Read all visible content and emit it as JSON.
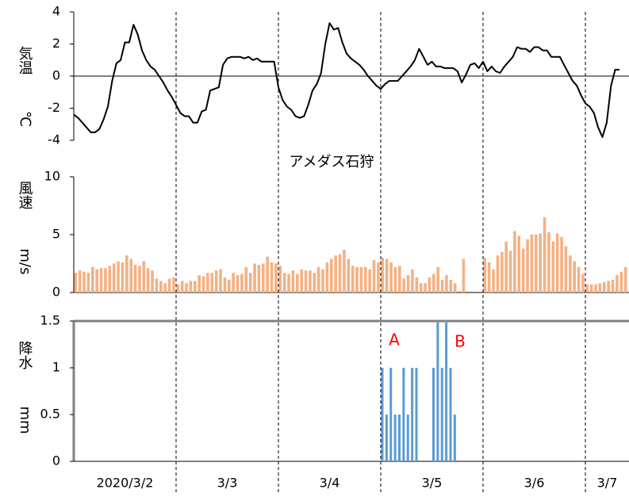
{
  "chart_data": [
    {
      "type": "line",
      "ylabel": "気温",
      "yunit": "℃",
      "color": "#000000",
      "ylim": [
        -4,
        4
      ],
      "yticks": [
        -4,
        -2,
        0,
        2,
        4
      ],
      "values": [
        [
          -2.4,
          -2.6,
          -2.9,
          -3.2,
          -3.5,
          -3.5,
          -3.3,
          -2.7,
          -1.9,
          -0.3,
          0.8,
          1.0,
          2.1,
          2.1,
          3.2,
          2.6,
          1.6,
          1.0,
          0.6,
          0.4,
          0.0,
          -0.4,
          -0.9,
          -1.3
        ],
        [
          -1.8,
          -2.3,
          -2.5,
          -2.5,
          -2.9,
          -2.9,
          -2.2,
          -2.1,
          -0.9,
          -0.8,
          -0.7,
          0.7,
          1.1,
          1.2,
          1.2,
          1.2,
          1.1,
          1.2,
          1.0,
          1.1,
          0.9,
          0.9,
          0.9,
          0.9
        ],
        [
          -0.7,
          -1.5,
          -1.9,
          -2.1,
          -2.5,
          -2.6,
          -2.5,
          -1.8,
          -0.9,
          -0.5,
          0.2,
          2.0,
          3.3,
          2.9,
          3.0,
          2.1,
          1.4,
          1.1,
          0.9,
          0.7,
          0.4,
          0.0,
          -0.3,
          -0.6
        ],
        [
          -0.8,
          -0.5,
          -0.3,
          -0.3,
          -0.3,
          0.0,
          0.3,
          0.6,
          1.0,
          1.7,
          1.2,
          0.7,
          0.9,
          0.6,
          0.6,
          0.5,
          0.5,
          0.5,
          0.3,
          -0.4,
          0.1,
          0.7,
          0.8,
          0.5
        ],
        [
          0.9,
          0.3,
          0.6,
          0.3,
          0.2,
          0.6,
          0.9,
          1.2,
          1.8,
          1.7,
          1.7,
          1.5,
          1.8,
          1.8,
          1.6,
          1.6,
          1.2,
          1.2,
          1.2,
          0.7,
          0.2,
          -0.3,
          -0.6,
          -1.2
        ],
        [
          -1.7,
          -1.9,
          -2.3,
          -3.2,
          -3.8,
          -2.9,
          -0.6,
          0.4,
          0.4
        ]
      ]
    },
    {
      "type": "bar",
      "title": "アメダス石狩",
      "ylabel": "風速",
      "yunit": "m/s",
      "color": "#f4b183",
      "ylim": [
        0,
        10
      ],
      "yticks": [
        0,
        5,
        10
      ],
      "values": [
        [
          1.7,
          1.9,
          1.8,
          1.7,
          2.2,
          2.0,
          2.1,
          2.1,
          2.3,
          2.5,
          2.7,
          2.6,
          3.2,
          2.9,
          2.4,
          2.3,
          2.7,
          2.1,
          1.9,
          1.2,
          1.0,
          0.8,
          1.2,
          1.3
        ],
        [
          0.7,
          1.0,
          0.8,
          1.0,
          1.0,
          1.5,
          1.4,
          1.7,
          1.7,
          1.9,
          2.0,
          1.3,
          1.1,
          1.7,
          1.5,
          1.6,
          2.2,
          1.7,
          2.5,
          2.4,
          2.5,
          3.1,
          2.6,
          2.5
        ],
        [
          2.3,
          1.7,
          1.6,
          1.9,
          1.6,
          2.0,
          1.9,
          1.9,
          1.7,
          2.2,
          2.0,
          2.6,
          2.9,
          3.2,
          3.3,
          3.7,
          2.9,
          2.3,
          2.2,
          2.2,
          2.2,
          2.0,
          2.8,
          2.6
        ],
        [
          3.0,
          2.9,
          2.6,
          2.2,
          2.3,
          1.2,
          1.5,
          2.0,
          1.3,
          0.8,
          0.8,
          1.3,
          1.6,
          2.2,
          1.1,
          1.5,
          1.1,
          0.8,
          null,
          2.9,
          null,
          null,
          null,
          null
        ],
        [
          3.0,
          2.6,
          2.0,
          3.2,
          3.5,
          4.4,
          3.6,
          5.3,
          4.9,
          3.8,
          4.6,
          5.0,
          5.0,
          5.1,
          6.5,
          5.2,
          4.4,
          5.1,
          4.8,
          4.0,
          3.2,
          2.7,
          2.2,
          1.6
        ],
        [
          0.7,
          0.7,
          0.7,
          0.8,
          0.9,
          1.0,
          1.1,
          1.5,
          1.8,
          2.2
        ]
      ]
    },
    {
      "type": "bar",
      "ylabel": "降水",
      "yunit": "mm",
      "color": "#5b9bd5",
      "ylim": [
        0,
        1.5
      ],
      "yticks": [
        0,
        0.5,
        1,
        1.5
      ],
      "categories": [
        "2020/3/2",
        "3/3",
        "3/4",
        "3/5",
        "3/6",
        "3/7"
      ],
      "annotations": [
        {
          "text": "A",
          "color": "#ff0000"
        },
        {
          "text": "B",
          "color": "#ff0000"
        }
      ],
      "values": [
        [
          0,
          0,
          0,
          0,
          0,
          0,
          0,
          0,
          0,
          0,
          0,
          0,
          0,
          0,
          0,
          0,
          0,
          0,
          0,
          0,
          0,
          0,
          0,
          0
        ],
        [
          0,
          0,
          0,
          0,
          0,
          0,
          0,
          0,
          0,
          0,
          0,
          0,
          0,
          0,
          0,
          0,
          0,
          0,
          0,
          0,
          0,
          0,
          0,
          0
        ],
        [
          0,
          0,
          0,
          0,
          0,
          0,
          0,
          0,
          0,
          0,
          0,
          0,
          0,
          0,
          0,
          0,
          0,
          0,
          0,
          0,
          0,
          0,
          0,
          0
        ],
        [
          1,
          0.5,
          1,
          0.5,
          0.5,
          1,
          0.5,
          1,
          1,
          0,
          0,
          0,
          1,
          1.5,
          1,
          1.5,
          1,
          0.5,
          0,
          0,
          0,
          0,
          0,
          0
        ],
        [
          0,
          0,
          0,
          0,
          0,
          0,
          0,
          0,
          0,
          0,
          0,
          0,
          0,
          0,
          0,
          0,
          0,
          0,
          0,
          0,
          0,
          0,
          0,
          0
        ],
        [
          0,
          0,
          0,
          0,
          0,
          0,
          0,
          0,
          0,
          0
        ]
      ]
    }
  ]
}
